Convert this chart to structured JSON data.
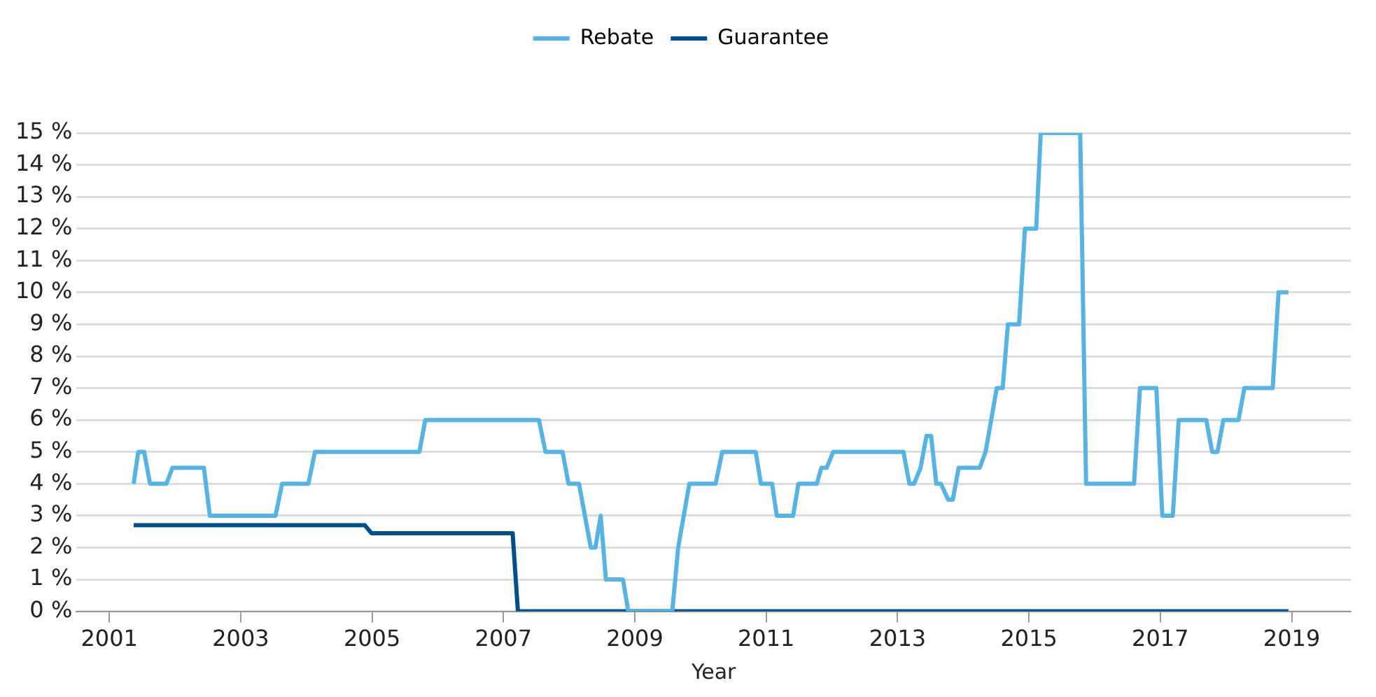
{
  "chart_data": {
    "type": "line",
    "xlabel": "Year",
    "legend": "top",
    "grid": "y",
    "xlim": [
      2000.5,
      2019.9
    ],
    "xticks": [
      2001,
      2003,
      2005,
      2007,
      2009,
      2011,
      2013,
      2015,
      2017,
      2019
    ],
    "ylim": [
      0,
      15
    ],
    "yticks": [
      {
        "value": 0,
        "label": "0 %"
      },
      {
        "value": 1,
        "label": "1 %"
      },
      {
        "value": 2,
        "label": "2 %"
      },
      {
        "value": 3,
        "label": "3 %"
      },
      {
        "value": 4,
        "label": "4 %"
      },
      {
        "value": 5,
        "label": "5 %"
      },
      {
        "value": 6,
        "label": "6 %"
      },
      {
        "value": 7,
        "label": "7 %"
      },
      {
        "value": 8,
        "label": "8 %"
      },
      {
        "value": 9,
        "label": "9 %"
      },
      {
        "value": 10,
        "label": "10 %"
      },
      {
        "value": 11,
        "label": "11 %"
      },
      {
        "value": 12,
        "label": "12 %"
      },
      {
        "value": 13,
        "label": "13 %"
      },
      {
        "value": 14,
        "label": "14 %"
      },
      {
        "value": 15,
        "label": "15 %"
      }
    ],
    "series": [
      {
        "name": "Rebate",
        "color": "#56b4e3",
        "x": [
          2001.37,
          2001.44,
          2001.53,
          2001.62,
          2001.87,
          2001.96,
          2002.44,
          2002.53,
          2003.53,
          2003.63,
          2004.03,
          2004.13,
          2005.72,
          2005.81,
          2007.54,
          2007.64,
          2007.9,
          2007.99,
          2008.15,
          2008.33,
          2008.4,
          2008.48,
          2008.56,
          2008.82,
          2008.9,
          2009.57,
          2009.66,
          2009.83,
          2010.23,
          2010.33,
          2010.84,
          2010.92,
          2011.09,
          2011.16,
          2011.41,
          2011.49,
          2011.77,
          2011.84,
          2011.92,
          2012.02,
          2013.09,
          2013.18,
          2013.25,
          2013.35,
          2013.44,
          2013.51,
          2013.59,
          2013.66,
          2013.77,
          2013.84,
          2013.93,
          2014.25,
          2014.34,
          2014.51,
          2014.6,
          2014.68,
          2014.85,
          2014.94,
          2015.11,
          2015.18,
          2015.78,
          2015.87,
          2016.6,
          2016.69,
          2016.94,
          2017.03,
          2017.19,
          2017.28,
          2017.7,
          2017.79,
          2017.87,
          2017.96,
          2018.19,
          2018.28,
          2018.71,
          2018.8,
          2018.95
        ],
        "values": [
          4,
          5,
          5,
          4,
          4,
          4.5,
          4.5,
          3,
          3,
          4,
          4,
          5,
          5,
          6,
          6,
          5,
          5,
          4,
          4,
          2,
          2,
          3,
          1,
          1,
          0,
          0,
          2,
          4,
          4,
          5,
          5,
          4,
          4,
          3,
          3,
          4,
          4,
          4.5,
          4.5,
          5,
          5,
          4,
          4,
          4.5,
          5.5,
          5.5,
          4,
          4,
          3.5,
          3.5,
          4.5,
          4.5,
          5,
          7,
          7,
          9,
          9,
          12,
          12,
          15,
          15,
          4,
          4,
          7,
          7,
          3,
          3,
          6,
          6,
          5,
          5,
          6,
          6,
          7,
          7,
          10,
          10
        ]
      },
      {
        "name": "Guarantee",
        "color": "#004f8c",
        "x": [
          2001.37,
          2004.89,
          2004.99,
          2007.14,
          2007.22,
          2018.95
        ],
        "values": [
          2.7,
          2.7,
          2.45,
          2.45,
          0,
          0
        ]
      }
    ]
  }
}
